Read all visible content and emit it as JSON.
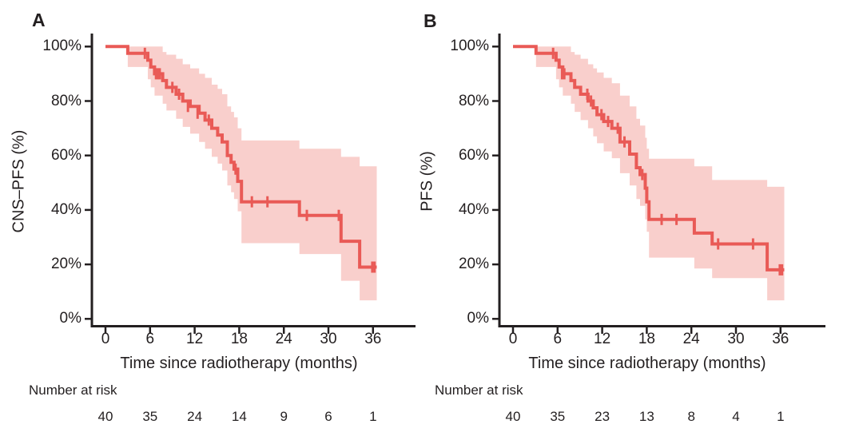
{
  "figure": {
    "background": "#ffffff",
    "curve_color": "#e95a56",
    "band_color": "#f9cfcc",
    "axis_color": "#231f20",
    "text_color": "#231f20"
  },
  "chart_data": [
    {
      "type": "line",
      "subtype": "kaplan-meier-step",
      "panel_label": "A",
      "ylabel": "CNS–PFS (%)",
      "xlabel": "Time since radiotherapy (months)",
      "risk_label": "Number at risk",
      "x_ticks": [
        0,
        6,
        12,
        18,
        24,
        30,
        36
      ],
      "y_ticks": [
        {
          "v": 0,
          "label": "0%"
        },
        {
          "v": 20,
          "label": "20%"
        },
        {
          "v": 40,
          "label": "40%"
        },
        {
          "v": 60,
          "label": "60%"
        },
        {
          "v": 80,
          "label": "80%"
        },
        {
          "v": 100,
          "label": "100%"
        }
      ],
      "xlim": [
        0,
        38
      ],
      "ylim": [
        0,
        100
      ],
      "grid": false,
      "legend": "none",
      "numbers_at_risk": [
        40,
        35,
        24,
        14,
        9,
        6,
        1
      ],
      "end_time": 36.5,
      "steps": [
        [
          0,
          100
        ],
        [
          3.0,
          97.5
        ],
        [
          5.7,
          95
        ],
        [
          6.1,
          92.5
        ],
        [
          6.6,
          90
        ],
        [
          7.7,
          87.5
        ],
        [
          8.2,
          85
        ],
        [
          9.5,
          82.5
        ],
        [
          10.4,
          80
        ],
        [
          11.4,
          78
        ],
        [
          12.6,
          75.5
        ],
        [
          13.4,
          73
        ],
        [
          14.3,
          70
        ],
        [
          15.1,
          67.5
        ],
        [
          15.7,
          65
        ],
        [
          16.4,
          60
        ],
        [
          16.9,
          57.5
        ],
        [
          17.3,
          55
        ],
        [
          17.8,
          50.5
        ],
        [
          18.3,
          43
        ],
        [
          26.1,
          38
        ],
        [
          31.7,
          28.5
        ],
        [
          34.2,
          19
        ]
      ],
      "censors": [
        [
          5.3,
          97.5
        ],
        [
          6.8,
          90
        ],
        [
          7.05,
          90
        ],
        [
          7.3,
          90
        ],
        [
          9.0,
          85
        ],
        [
          9.9,
          82.5
        ],
        [
          11.1,
          78
        ],
        [
          12.4,
          75.5
        ],
        [
          13.9,
          73
        ],
        [
          17.5,
          55
        ],
        [
          19.7,
          43
        ],
        [
          21.8,
          43
        ],
        [
          27.1,
          38
        ],
        [
          31.4,
          38
        ],
        [
          35.9,
          19
        ],
        [
          36.2,
          19
        ]
      ],
      "ci": [
        [
          3.0,
          92.5,
          100
        ],
        [
          5.7,
          88,
          100
        ],
        [
          6.1,
          85,
          100
        ],
        [
          6.6,
          82,
          100
        ],
        [
          7.7,
          79,
          98
        ],
        [
          8.2,
          76.5,
          97
        ],
        [
          9.5,
          73.5,
          95.5
        ],
        [
          10.4,
          70.5,
          93.5
        ],
        [
          11.4,
          68,
          92
        ],
        [
          12.6,
          65,
          90
        ],
        [
          13.4,
          62.5,
          88.5
        ],
        [
          14.3,
          59.5,
          86
        ],
        [
          15.1,
          57,
          84.5
        ],
        [
          15.7,
          54.5,
          82.5
        ],
        [
          16.4,
          49,
          78
        ],
        [
          16.9,
          46.5,
          76
        ],
        [
          17.3,
          44,
          74
        ],
        [
          17.8,
          39.5,
          70
        ],
        [
          18.3,
          27.8,
          65.5
        ],
        [
          26.1,
          23.8,
          62.5
        ],
        [
          31.7,
          14,
          59.5
        ],
        [
          34.2,
          6.8,
          56
        ]
      ]
    },
    {
      "type": "line",
      "subtype": "kaplan-meier-step",
      "panel_label": "B",
      "ylabel": "PFS (%)",
      "xlabel": "Time since radiotherapy (months)",
      "risk_label": "Number at risk",
      "x_ticks": [
        0,
        6,
        12,
        18,
        24,
        30,
        36
      ],
      "y_ticks": [
        {
          "v": 0,
          "label": "0%"
        },
        {
          "v": 20,
          "label": "20%"
        },
        {
          "v": 40,
          "label": "40%"
        },
        {
          "v": 60,
          "label": "60%"
        },
        {
          "v": 80,
          "label": "80%"
        },
        {
          "v": 100,
          "label": "100%"
        }
      ],
      "xlim": [
        0,
        38
      ],
      "ylim": [
        0,
        100
      ],
      "grid": false,
      "legend": "none",
      "numbers_at_risk": [
        40,
        35,
        23,
        13,
        8,
        4,
        1
      ],
      "end_time": 36.5,
      "steps": [
        [
          0,
          100
        ],
        [
          3.1,
          97.5
        ],
        [
          5.8,
          95
        ],
        [
          6.2,
          92.5
        ],
        [
          6.7,
          90
        ],
        [
          7.8,
          87.5
        ],
        [
          8.3,
          85
        ],
        [
          9.1,
          82.5
        ],
        [
          10.1,
          80
        ],
        [
          10.8,
          77.5
        ],
        [
          11.3,
          75
        ],
        [
          12.2,
          72.5
        ],
        [
          13.3,
          70
        ],
        [
          14.4,
          65
        ],
        [
          15.7,
          60.5
        ],
        [
          16.6,
          55.5
        ],
        [
          17.1,
          53
        ],
        [
          17.8,
          48
        ],
        [
          18.0,
          43
        ],
        [
          18.3,
          36.5
        ],
        [
          24.4,
          31.5
        ],
        [
          26.8,
          27.5
        ],
        [
          34.2,
          18
        ]
      ],
      "censors": [
        [
          5.4,
          97.5
        ],
        [
          6.6,
          90
        ],
        [
          6.9,
          90
        ],
        [
          10.0,
          82.5
        ],
        [
          10.5,
          80
        ],
        [
          11.9,
          75
        ],
        [
          12.8,
          72.5
        ],
        [
          14.1,
          70
        ],
        [
          15.0,
          65
        ],
        [
          17.4,
          53
        ],
        [
          20.0,
          36.5
        ],
        [
          22.0,
          36.5
        ],
        [
          27.6,
          27.5
        ],
        [
          32.3,
          27.5
        ],
        [
          35.9,
          18
        ],
        [
          36.2,
          18
        ]
      ],
      "ci": [
        [
          3.1,
          92.5,
          100
        ],
        [
          5.8,
          88,
          100
        ],
        [
          6.2,
          85,
          100
        ],
        [
          6.7,
          82,
          100
        ],
        [
          7.8,
          79,
          98
        ],
        [
          8.3,
          76,
          97
        ],
        [
          9.1,
          73,
          95.5
        ],
        [
          10.1,
          70,
          93.5
        ],
        [
          10.8,
          67,
          92
        ],
        [
          11.3,
          64.5,
          90.5
        ],
        [
          12.2,
          61.5,
          88.5
        ],
        [
          13.3,
          59,
          86.5
        ],
        [
          14.4,
          53.5,
          82
        ],
        [
          15.7,
          49,
          78
        ],
        [
          16.6,
          44,
          73.5
        ],
        [
          17.1,
          41.5,
          71
        ],
        [
          17.8,
          36.5,
          66.5
        ],
        [
          18.0,
          32,
          62.5
        ],
        [
          18.3,
          22.5,
          58.8
        ],
        [
          24.4,
          18.5,
          56
        ],
        [
          26.8,
          15,
          51
        ],
        [
          34.2,
          6.8,
          48.5
        ]
      ]
    }
  ]
}
